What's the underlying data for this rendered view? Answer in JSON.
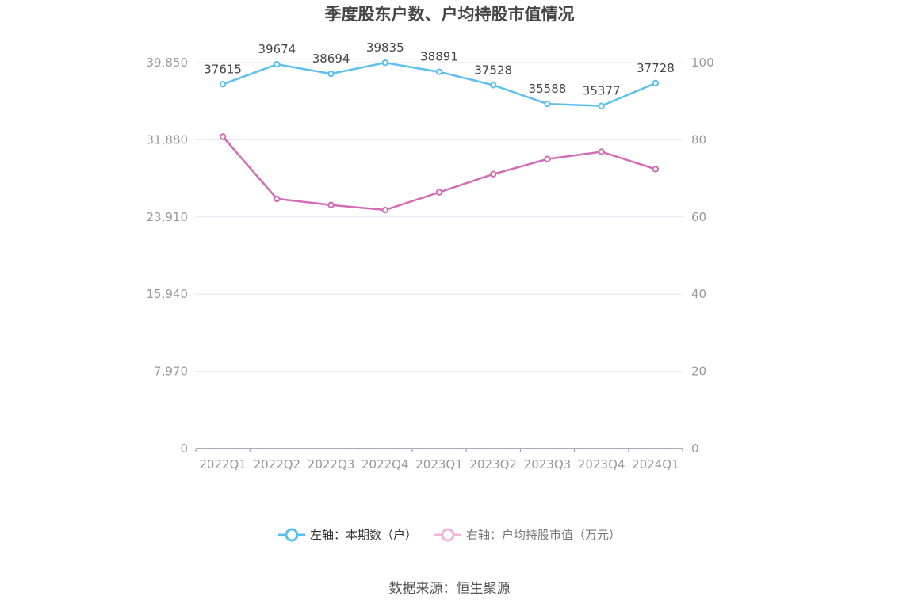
{
  "chart_data": {
    "type": "line",
    "title": "季度股东户数、户均持股市值情况",
    "categories": [
      "2022Q1",
      "2022Q2",
      "2022Q3",
      "2022Q4",
      "2023Q1",
      "2023Q2",
      "2023Q3",
      "2023Q4",
      "2024Q1"
    ],
    "left_axis": {
      "ylim": [
        0,
        39850
      ],
      "ticks": [
        "0",
        "7,970",
        "15,940",
        "23,910",
        "31,880",
        "39,850"
      ]
    },
    "right_axis": {
      "ylim": [
        0,
        100
      ],
      "ticks": [
        "0",
        "20",
        "40",
        "60",
        "80",
        "100"
      ]
    },
    "series": [
      {
        "name": "左轴：本期数（户）",
        "axis": "left",
        "color": "#5bbff0",
        "values": [
          37615,
          39674,
          38694,
          39835,
          38891,
          37528,
          35588,
          35377,
          37728
        ],
        "labels": [
          "37615",
          "39674",
          "38694",
          "39835",
          "38891",
          "37528",
          "35588",
          "35377",
          "37728"
        ]
      },
      {
        "name": "右轴：户均持股市值（万元）",
        "axis": "right",
        "color": "#d46bb5",
        "values": [
          80.8,
          64.7,
          63.1,
          61.8,
          66.4,
          71.1,
          75.0,
          76.9,
          72.4
        ]
      }
    ],
    "grid": true,
    "legend_position": "bottom"
  },
  "source": "数据来源：恒生聚源"
}
